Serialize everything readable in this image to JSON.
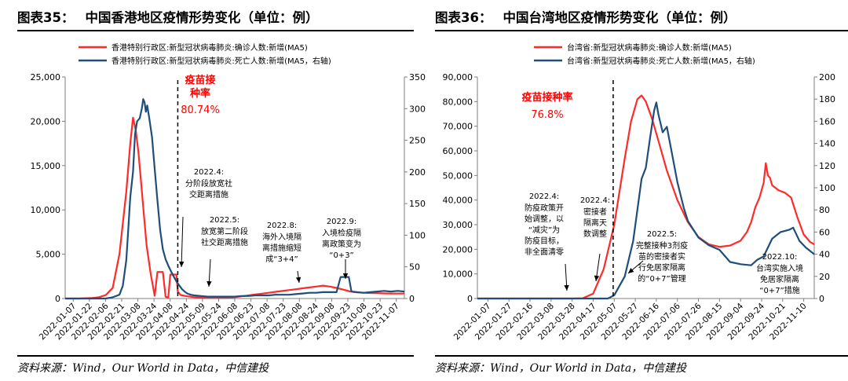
{
  "colors": {
    "red": "#ff2a2a",
    "blue": "#1f4e79",
    "axis": "#7f7f7f",
    "text": "#000000",
    "annoRed": "#ff0000"
  },
  "left": {
    "title_num": "图表35：",
    "title_text": "中国香港地区疫情形势变化（单位：例）",
    "source": "资料来源：Wind，Our World in Data，中信建投"
  },
  "right": {
    "title_num": "图表36：",
    "title_text": "中国台湾地区疫情形势变化（单位：例）",
    "source": "资料来源：Wind，Our World in Data，中信建投"
  },
  "chart_data": [
    {
      "type": "line",
      "title": "中国香港地区疫情形势变化（单位：例）",
      "x_labels": [
        "2022-01-07",
        "2022-01-22",
        "2022-02-06",
        "2022-02-21",
        "2022-03-08",
        "2022-03-24",
        "2022-04-08",
        "2022-04-24",
        "2022-05-09",
        "2022-05-24",
        "2022-06-08",
        "2022-06-23",
        "2022-07-08",
        "2022-07-23",
        "2022-08-08",
        "2022-08-24",
        "2022-09-08",
        "2022-09-23",
        "2022-10-08",
        "2022-10-23",
        "2022-11-07"
      ],
      "y_left": {
        "ticks": [
          "0",
          "5,000",
          "10,000",
          "15,000",
          "20,000",
          "25,000"
        ],
        "min": 0,
        "max": 25000
      },
      "y_right": {
        "ticks": [
          "0",
          "50",
          "100",
          "150",
          "200",
          "250",
          "300",
          "350"
        ],
        "min": 0,
        "max": 350
      },
      "series": [
        {
          "name": "香港特别行政区:新型冠状病毒肺炎:确诊人数:新增(MA5)",
          "axis": "left",
          "color": "#ff2a2a",
          "points": [
            [
              0,
              0
            ],
            [
              2,
              0
            ],
            [
              4,
              50
            ],
            [
              5,
              150
            ],
            [
              6,
              400
            ],
            [
              7,
              1200
            ],
            [
              8,
              5000
            ],
            [
              9,
              12000
            ],
            [
              9.6,
              17500
            ],
            [
              10,
              20400
            ],
            [
              10.4,
              19000
            ],
            [
              10.8,
              16500
            ],
            [
              11.2,
              13000
            ],
            [
              11.6,
              9500
            ],
            [
              12,
              6000
            ],
            [
              12.6,
              2800
            ],
            [
              13.2,
              300
            ],
            [
              13.6,
              3000
            ],
            [
              14.4,
              3000
            ],
            [
              14.8,
              200
            ],
            [
              15.2,
              100
            ],
            [
              15.5,
              2700
            ],
            [
              16.4,
              2700
            ],
            [
              16.6,
              800
            ],
            [
              17,
              400
            ],
            [
              18,
              250
            ],
            [
              19,
              150
            ],
            [
              20,
              100
            ],
            [
              21,
              80
            ],
            [
              22,
              70
            ],
            [
              23,
              80
            ],
            [
              24,
              100
            ],
            [
              25,
              150
            ],
            [
              26,
              250
            ],
            [
              27,
              350
            ],
            [
              28,
              450
            ],
            [
              29,
              550
            ],
            [
              30,
              650
            ],
            [
              31,
              750
            ],
            [
              32,
              850
            ],
            [
              33,
              950
            ],
            [
              34,
              1050
            ],
            [
              35,
              1150
            ],
            [
              36,
              1250
            ],
            [
              37,
              1350
            ],
            [
              38,
              1450
            ],
            [
              39,
              1350
            ],
            [
              40,
              1200
            ],
            [
              41,
              1000
            ],
            [
              42,
              800
            ],
            [
              43,
              700
            ],
            [
              44,
              650
            ],
            [
              45,
              620
            ],
            [
              46,
              600
            ],
            [
              47,
              580
            ],
            [
              48,
              560
            ],
            [
              49,
              560
            ],
            [
              50,
              560
            ]
          ]
        },
        {
          "name": "香港特别行政区:新型冠状病毒肺炎:死亡人数:新增(MA5，右轴)",
          "axis": "right",
          "color": "#1f4e79",
          "points": [
            [
              0,
              0
            ],
            [
              6,
              0
            ],
            [
              7,
              2
            ],
            [
              8,
              6
            ],
            [
              8.5,
              20
            ],
            [
              9,
              60
            ],
            [
              9.3,
              110
            ],
            [
              9.6,
              160
            ],
            [
              10,
              200
            ],
            [
              10.3,
              260
            ],
            [
              10.6,
              280
            ],
            [
              11,
              285
            ],
            [
              11.3,
              300
            ],
            [
              11.5,
              315
            ],
            [
              11.7,
              310
            ],
            [
              11.9,
              295
            ],
            [
              12.1,
              305
            ],
            [
              12.4,
              285
            ],
            [
              12.8,
              255
            ],
            [
              13.2,
              205
            ],
            [
              13.6,
              155
            ],
            [
              14,
              108
            ],
            [
              14.4,
              78
            ],
            [
              14.8,
              62
            ],
            [
              15.2,
              52
            ],
            [
              15.6,
              43
            ],
            [
              16,
              35
            ],
            [
              16.4,
              27
            ],
            [
              16.8,
              21
            ],
            [
              17.2,
              15
            ],
            [
              17.6,
              11
            ],
            [
              18,
              8
            ],
            [
              18.5,
              6
            ],
            [
              19,
              5
            ],
            [
              20,
              4
            ],
            [
              21,
              3
            ],
            [
              22,
              3
            ],
            [
              23,
              3
            ],
            [
              24,
              3
            ],
            [
              25,
              3
            ],
            [
              26,
              4
            ],
            [
              27,
              4
            ],
            [
              28,
              5
            ],
            [
              29,
              5
            ],
            [
              30,
              5
            ],
            [
              31,
              6
            ],
            [
              32,
              6
            ],
            [
              33,
              6
            ],
            [
              34,
              7
            ],
            [
              35,
              8
            ],
            [
              36,
              9
            ],
            [
              37,
              9
            ],
            [
              38,
              10
            ],
            [
              39,
              10
            ],
            [
              40,
              10
            ],
            [
              40.6,
              34
            ],
            [
              41.8,
              34
            ],
            [
              42.2,
              11
            ],
            [
              43,
              10
            ],
            [
              44,
              9
            ],
            [
              45,
              10
            ],
            [
              46,
              11
            ],
            [
              47,
              12
            ],
            [
              48,
              11
            ],
            [
              49,
              12
            ],
            [
              50,
              11
            ]
          ]
        }
      ],
      "vline_label": {
        "title": "疫苗接\n种率",
        "value": "80.74%"
      },
      "annotations": [
        {
          "date": "2022.4:",
          "text": "分阶段放宽社\n交距离措施"
        },
        {
          "date": "2022.5:",
          "text": "放宽第二阶段\n社交距离措施"
        },
        {
          "date": "2022.8:",
          "text": "海外入境隔\n离措施缩短\n成“3+4”"
        },
        {
          "date": "2022.9:",
          "text": "入境检疫隔\n离政策变为\n“0+3”"
        }
      ]
    },
    {
      "type": "line",
      "title": "中国台湾地区疫情形势变化（单位：例）",
      "x_labels": [
        "2022-01-07",
        "2022-01-27",
        "2022-02-16",
        "2022-03-08",
        "2022-03-28",
        "2022-04-17",
        "2022-05-07",
        "2022-05-27",
        "2022-06-16",
        "2022-07-06",
        "2022-07-26",
        "2022-08-15",
        "2022-09-04",
        "2022-09-24",
        "2022-10-21",
        "2022-11-10"
      ],
      "y_left": {
        "ticks": [
          "0",
          "10,000",
          "20,000",
          "30,000",
          "40,000",
          "50,000",
          "60,000",
          "70,000",
          "80,000",
          "90,000"
        ],
        "min": 0,
        "max": 90000
      },
      "y_right": {
        "ticks": [
          "0",
          "20",
          "40",
          "60",
          "80",
          "100",
          "120",
          "140",
          "160",
          "180",
          "200"
        ],
        "min": 0,
        "max": 200
      },
      "series": [
        {
          "name": "台湾省:新型冠状病毒肺炎:确诊人数:新增(MA5)",
          "axis": "left",
          "color": "#ff2a2a",
          "points": [
            [
              0,
              0
            ],
            [
              4.5,
              0
            ],
            [
              5,
              100
            ],
            [
              5.5,
              2000
            ],
            [
              6,
              12000
            ],
            [
              6.5,
              30000
            ],
            [
              7,
              57000
            ],
            [
              7.3,
              72000
            ],
            [
              7.6,
              81000
            ],
            [
              7.8,
              82500
            ],
            [
              8,
              80000
            ],
            [
              8.3,
              73000
            ],
            [
              8.6,
              64000
            ],
            [
              9,
              52000
            ],
            [
              9.5,
              40000
            ],
            [
              10,
              31000
            ],
            [
              10.5,
              25000
            ],
            [
              11,
              22000
            ],
            [
              11.5,
              21000
            ],
            [
              12,
              21500
            ],
            [
              12.5,
              23500
            ],
            [
              12.8,
              27000
            ],
            [
              13,
              31000
            ],
            [
              13.2,
              37000
            ],
            [
              13.4,
              41000
            ],
            [
              13.6,
              47000
            ],
            [
              13.7,
              55000
            ],
            [
              13.8,
              50000
            ],
            [
              13.9,
              49000
            ],
            [
              14,
              46000
            ],
            [
              14.3,
              44000
            ],
            [
              14.6,
              43000
            ],
            [
              14.9,
              41000
            ],
            [
              15.2,
              33000
            ],
            [
              15.5,
              26000
            ],
            [
              15.8,
              23000
            ],
            [
              16,
              22000
            ]
          ]
        },
        {
          "name": "台湾省:新型冠状病毒肺炎:死亡人数:新增(MA5，右轴)",
          "axis": "right",
          "color": "#1f4e79",
          "points": [
            [
              0,
              0
            ],
            [
              6.2,
              0
            ],
            [
              6.5,
              3
            ],
            [
              7,
              20
            ],
            [
              7.4,
              52
            ],
            [
              7.8,
              108
            ],
            [
              8,
              118
            ],
            [
              8.2,
              145
            ],
            [
              8.4,
              170
            ],
            [
              8.5,
              177
            ],
            [
              8.6,
              166
            ],
            [
              8.8,
              150
            ],
            [
              9,
              155
            ],
            [
              9.2,
              135
            ],
            [
              9.5,
              105
            ],
            [
              9.8,
              82
            ],
            [
              10,
              70
            ],
            [
              10.5,
              55
            ],
            [
              11,
              48
            ],
            [
              11.5,
              44
            ],
            [
              12,
              33
            ],
            [
              12.5,
              31
            ],
            [
              13,
              30
            ],
            [
              13.3,
              35
            ],
            [
              13.6,
              38
            ],
            [
              13.8,
              46
            ],
            [
              14,
              54
            ],
            [
              14.4,
              60
            ],
            [
              14.8,
              62
            ],
            [
              15,
              64
            ],
            [
              15.3,
              52
            ],
            [
              15.6,
              46
            ],
            [
              16,
              40
            ]
          ]
        }
      ],
      "vline_label": {
        "title": "疫苗接种率",
        "value": "76.8%"
      },
      "annotations": [
        {
          "date": "2022.4:",
          "text": "防疫政策开\n始调整，以\n“减灾”为\n防疫目标，\n非全面清零"
        },
        {
          "date": "2022.4:",
          "text": "密接者\n隔离天\n数调整"
        },
        {
          "date": "2022.5:",
          "text": "完整接种3剂疫\n苗的密接者实\n行免居家隔离\n的“0+7”管理"
        },
        {
          "date": "2022.10:",
          "text": "台湾实施入境\n免居家隔离\n“0+7”措施"
        }
      ]
    }
  ]
}
